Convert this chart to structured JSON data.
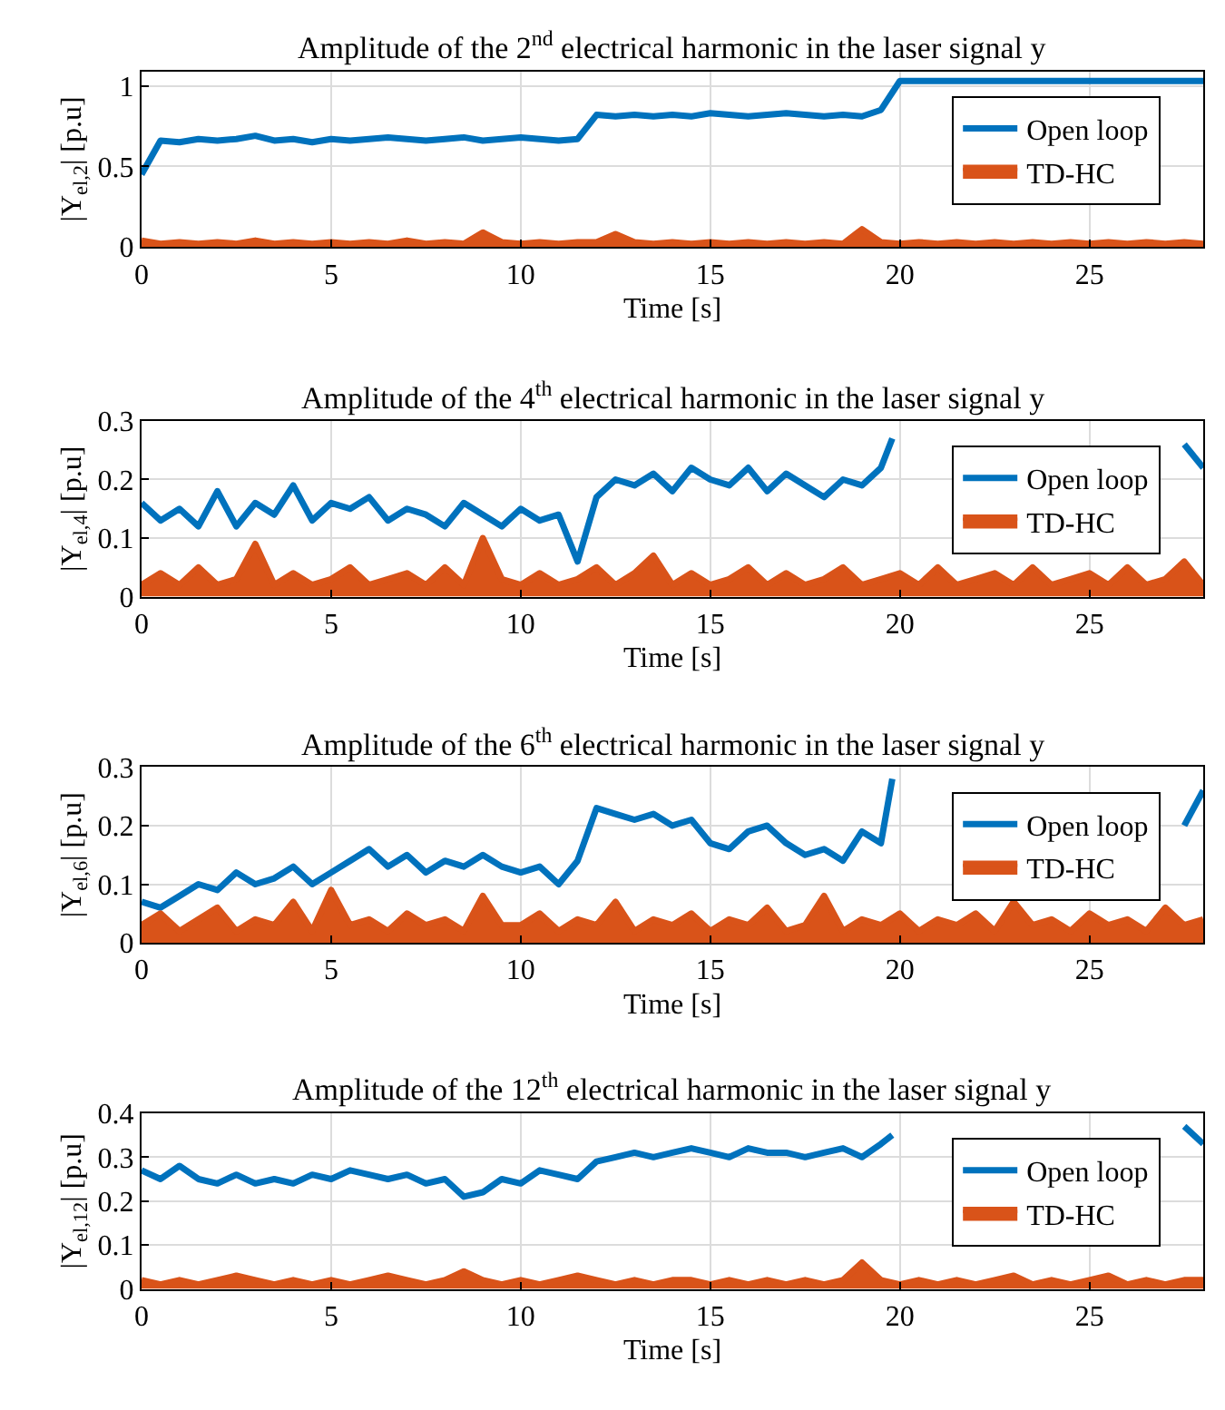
{
  "chart_data": [
    {
      "type": "line",
      "title": "Amplitude of the 2$^{nd}$ electrical harmonic in the laser signal y",
      "xlabel": "Time [s]",
      "ylabel": "|Y$_{el,2}$| [p.u]",
      "xlim": [
        0,
        28
      ],
      "xticks": [
        0,
        5,
        10,
        15,
        20,
        25
      ],
      "ylim": [
        0,
        1.09
      ],
      "yticks": [
        0,
        0.5,
        1
      ],
      "grid": true,
      "legend": "top right",
      "x": [
        0,
        0.5,
        1,
        1.5,
        2,
        2.5,
        3,
        3.5,
        4,
        4.5,
        5,
        5.5,
        6,
        6.5,
        7,
        7.5,
        8,
        8.5,
        9,
        9.5,
        10,
        10.5,
        11,
        11.5,
        12,
        12.5,
        13,
        13.5,
        14,
        14.5,
        15,
        15.5,
        16,
        16.5,
        17,
        17.5,
        18,
        18.5,
        19,
        19.5,
        20,
        20.5,
        21,
        21.5,
        22,
        22.5,
        23,
        23.5,
        24,
        24.5,
        25,
        25.5,
        26,
        26.5,
        27,
        27.5,
        28
      ],
      "series": [
        {
          "name": "Open loop",
          "color": "#0072bd",
          "values": [
            0.45,
            0.66,
            0.65,
            0.67,
            0.66,
            0.67,
            0.69,
            0.66,
            0.67,
            0.65,
            0.67,
            0.66,
            0.67,
            0.68,
            0.67,
            0.66,
            0.67,
            0.68,
            0.66,
            0.67,
            0.68,
            0.67,
            0.66,
            0.67,
            0.82,
            0.81,
            0.82,
            0.81,
            0.82,
            0.81,
            0.83,
            0.82,
            0.81,
            0.82,
            0.83,
            0.82,
            0.81,
            0.82,
            0.81,
            0.85,
            1.03,
            1.03,
            1.03,
            1.03,
            1.03,
            1.03,
            1.03,
            1.03,
            1.03,
            1.03,
            1.03,
            1.03,
            1.03,
            1.03,
            1.03,
            1.03,
            1.03
          ]
        },
        {
          "name": "TD-HC",
          "type": "area",
          "color": "#d95319",
          "values": [
            0.04,
            0.02,
            0.03,
            0.02,
            0.03,
            0.02,
            0.04,
            0.02,
            0.03,
            0.02,
            0.03,
            0.02,
            0.03,
            0.02,
            0.04,
            0.02,
            0.03,
            0.02,
            0.09,
            0.03,
            0.02,
            0.03,
            0.02,
            0.03,
            0.03,
            0.08,
            0.03,
            0.02,
            0.03,
            0.02,
            0.03,
            0.02,
            0.03,
            0.02,
            0.03,
            0.02,
            0.03,
            0.02,
            0.11,
            0.03,
            0.02,
            0.03,
            0.02,
            0.03,
            0.02,
            0.03,
            0.02,
            0.03,
            0.02,
            0.03,
            0.02,
            0.03,
            0.02,
            0.03,
            0.02,
            0.03,
            0.02
          ]
        }
      ]
    },
    {
      "type": "line",
      "title": "Amplitude of the 4$^{th}$ electrical harmonic in the laser signal y",
      "xlabel": "Time [s]",
      "ylabel": "|Y$_{el,4}$| [p.u]",
      "xlim": [
        0,
        28
      ],
      "xticks": [
        0,
        5,
        10,
        15,
        20,
        25
      ],
      "ylim": [
        0,
        0.3
      ],
      "yticks": [
        0,
        0.1,
        0.2,
        0.3
      ],
      "grid": true,
      "legend": "top right",
      "x": [
        0,
        0.5,
        1,
        1.5,
        2,
        2.5,
        3,
        3.5,
        4,
        4.5,
        5,
        5.5,
        6,
        6.5,
        7,
        7.5,
        8,
        8.5,
        9,
        9.5,
        10,
        10.5,
        11,
        11.5,
        12,
        12.5,
        13,
        13.5,
        14,
        14.5,
        15,
        15.5,
        16,
        16.5,
        17,
        17.5,
        18,
        18.5,
        19,
        19.5,
        20,
        20.5,
        21,
        21.5,
        22,
        22.5,
        23,
        23.5,
        24,
        24.5,
        25,
        25.5,
        26,
        26.5,
        27,
        27.5,
        28
      ],
      "series": [
        {
          "name": "Open loop",
          "color": "#0072bd",
          "x": [
            0,
            0.5,
            1,
            1.5,
            2,
            2.5,
            3,
            3.5,
            4,
            4.5,
            5,
            5.5,
            6,
            6.5,
            7,
            7.5,
            8,
            8.5,
            9,
            9.5,
            10,
            10.5,
            11,
            11.5,
            12,
            12.5,
            13,
            13.5,
            14,
            14.5,
            15,
            15.5,
            16,
            16.5,
            17,
            17.5,
            18,
            18.5,
            19,
            19.5,
            19.8,
            20,
            27.5,
            28
          ],
          "values": [
            0.16,
            0.13,
            0.15,
            0.12,
            0.18,
            0.12,
            0.16,
            0.14,
            0.19,
            0.13,
            0.16,
            0.15,
            0.17,
            0.13,
            0.15,
            0.14,
            0.12,
            0.16,
            0.14,
            0.12,
            0.15,
            0.13,
            0.14,
            0.06,
            0.17,
            0.2,
            0.19,
            0.21,
            0.18,
            0.22,
            0.2,
            0.19,
            0.22,
            0.18,
            0.21,
            0.19,
            0.17,
            0.2,
            0.19,
            0.22,
            0.27,
            null,
            0.26,
            0.22
          ]
        },
        {
          "name": "TD-HC",
          "type": "area",
          "color": "#d95319",
          "values": [
            0.02,
            0.04,
            0.02,
            0.05,
            0.02,
            0.03,
            0.09,
            0.02,
            0.04,
            0.02,
            0.03,
            0.05,
            0.02,
            0.03,
            0.04,
            0.02,
            0.05,
            0.02,
            0.1,
            0.03,
            0.02,
            0.04,
            0.02,
            0.03,
            0.05,
            0.02,
            0.04,
            0.07,
            0.02,
            0.04,
            0.02,
            0.03,
            0.05,
            0.02,
            0.04,
            0.02,
            0.03,
            0.05,
            0.02,
            0.03,
            0.04,
            0.02,
            0.05,
            0.02,
            0.03,
            0.04,
            0.02,
            0.05,
            0.02,
            0.03,
            0.04,
            0.02,
            0.05,
            0.02,
            0.03,
            0.06,
            0.02
          ]
        }
      ]
    },
    {
      "type": "line",
      "title": "Amplitude of the 6$^{th}$ electrical harmonic in the laser signal y",
      "xlabel": "Time [s]",
      "ylabel": "|Y$_{el,6}$| [p.u]",
      "xlim": [
        0,
        28
      ],
      "xticks": [
        0,
        5,
        10,
        15,
        20,
        25
      ],
      "ylim": [
        0,
        0.3
      ],
      "yticks": [
        0,
        0.1,
        0.2,
        0.3
      ],
      "grid": true,
      "legend": "top right",
      "x": [
        0,
        0.5,
        1,
        1.5,
        2,
        2.5,
        3,
        3.5,
        4,
        4.5,
        5,
        5.5,
        6,
        6.5,
        7,
        7.5,
        8,
        8.5,
        9,
        9.5,
        10,
        10.5,
        11,
        11.5,
        12,
        12.5,
        13,
        13.5,
        14,
        14.5,
        15,
        15.5,
        16,
        16.5,
        17,
        17.5,
        18,
        18.5,
        19,
        19.5,
        20,
        20.5,
        21,
        21.5,
        22,
        22.5,
        23,
        23.5,
        24,
        24.5,
        25,
        25.5,
        26,
        26.5,
        27,
        27.5,
        28
      ],
      "series": [
        {
          "name": "Open loop",
          "color": "#0072bd",
          "x": [
            0,
            0.5,
            1,
            1.5,
            2,
            2.5,
            3,
            3.5,
            4,
            4.5,
            5,
            5.5,
            6,
            6.5,
            7,
            7.5,
            8,
            8.5,
            9,
            9.5,
            10,
            10.5,
            11,
            11.5,
            12,
            12.5,
            13,
            13.5,
            14,
            14.5,
            15,
            15.5,
            16,
            16.5,
            17,
            17.5,
            18,
            18.5,
            19,
            19.5,
            19.8,
            20,
            27.5,
            28
          ],
          "values": [
            0.07,
            0.06,
            0.08,
            0.1,
            0.09,
            0.12,
            0.1,
            0.11,
            0.13,
            0.1,
            0.12,
            0.14,
            0.16,
            0.13,
            0.15,
            0.12,
            0.14,
            0.13,
            0.15,
            0.13,
            0.12,
            0.13,
            0.1,
            0.14,
            0.23,
            0.22,
            0.21,
            0.22,
            0.2,
            0.21,
            0.17,
            0.16,
            0.19,
            0.2,
            0.17,
            0.15,
            0.16,
            0.14,
            0.19,
            0.17,
            0.28,
            null,
            0.2,
            0.26
          ]
        },
        {
          "name": "TD-HC",
          "type": "area",
          "color": "#d95319",
          "values": [
            0.03,
            0.05,
            0.02,
            0.04,
            0.06,
            0.02,
            0.04,
            0.03,
            0.07,
            0.02,
            0.09,
            0.03,
            0.04,
            0.02,
            0.05,
            0.03,
            0.04,
            0.02,
            0.08,
            0.03,
            0.03,
            0.05,
            0.02,
            0.04,
            0.03,
            0.07,
            0.02,
            0.04,
            0.03,
            0.05,
            0.02,
            0.04,
            0.03,
            0.06,
            0.02,
            0.03,
            0.08,
            0.02,
            0.04,
            0.03,
            0.05,
            0.02,
            0.04,
            0.03,
            0.05,
            0.02,
            0.07,
            0.03,
            0.04,
            0.02,
            0.05,
            0.03,
            0.04,
            0.02,
            0.06,
            0.03,
            0.04
          ]
        }
      ]
    },
    {
      "type": "line",
      "title": "Amplitude of the 12$^{th}$ electrical harmonic in the laser signal y",
      "xlabel": "Time [s]",
      "ylabel": "|Y$_{el,12}$| [p.u]",
      "xlim": [
        0,
        28
      ],
      "xticks": [
        0,
        5,
        10,
        15,
        20,
        25
      ],
      "ylim": [
        0,
        0.4
      ],
      "yticks": [
        0,
        0.1,
        0.2,
        0.3,
        0.4
      ],
      "grid": true,
      "legend": "top right",
      "x": [
        0,
        0.5,
        1,
        1.5,
        2,
        2.5,
        3,
        3.5,
        4,
        4.5,
        5,
        5.5,
        6,
        6.5,
        7,
        7.5,
        8,
        8.5,
        9,
        9.5,
        10,
        10.5,
        11,
        11.5,
        12,
        12.5,
        13,
        13.5,
        14,
        14.5,
        15,
        15.5,
        16,
        16.5,
        17,
        17.5,
        18,
        18.5,
        19,
        19.5,
        20,
        20.5,
        21,
        21.5,
        22,
        22.5,
        23,
        23.5,
        24,
        24.5,
        25,
        25.5,
        26,
        26.5,
        27,
        27.5,
        28
      ],
      "series": [
        {
          "name": "Open loop",
          "color": "#0072bd",
          "x": [
            0,
            0.5,
            1,
            1.5,
            2,
            2.5,
            3,
            3.5,
            4,
            4.5,
            5,
            5.5,
            6,
            6.5,
            7,
            7.5,
            8,
            8.5,
            9,
            9.5,
            10,
            10.5,
            11,
            11.5,
            12,
            12.5,
            13,
            13.5,
            14,
            14.5,
            15,
            15.5,
            16,
            16.5,
            17,
            17.5,
            18,
            18.5,
            19,
            19.5,
            19.8,
            20,
            27.5,
            28
          ],
          "values": [
            0.27,
            0.25,
            0.28,
            0.25,
            0.24,
            0.26,
            0.24,
            0.25,
            0.24,
            0.26,
            0.25,
            0.27,
            0.26,
            0.25,
            0.26,
            0.24,
            0.25,
            0.21,
            0.22,
            0.25,
            0.24,
            0.27,
            0.26,
            0.25,
            0.29,
            0.3,
            0.31,
            0.3,
            0.31,
            0.32,
            0.31,
            0.3,
            0.32,
            0.31,
            0.31,
            0.3,
            0.31,
            0.32,
            0.3,
            0.33,
            0.35,
            null,
            0.37,
            0.33
          ]
        },
        {
          "name": "TD-HC",
          "type": "area",
          "color": "#d95319",
          "values": [
            0.02,
            0.01,
            0.02,
            0.01,
            0.02,
            0.03,
            0.02,
            0.01,
            0.02,
            0.01,
            0.02,
            0.01,
            0.02,
            0.03,
            0.02,
            0.01,
            0.02,
            0.04,
            0.02,
            0.01,
            0.02,
            0.01,
            0.02,
            0.03,
            0.02,
            0.01,
            0.02,
            0.01,
            0.02,
            0.02,
            0.01,
            0.02,
            0.01,
            0.02,
            0.01,
            0.02,
            0.01,
            0.02,
            0.06,
            0.02,
            0.01,
            0.02,
            0.01,
            0.02,
            0.01,
            0.02,
            0.03,
            0.01,
            0.02,
            0.01,
            0.02,
            0.03,
            0.01,
            0.02,
            0.01,
            0.02,
            0.02
          ]
        }
      ]
    }
  ]
}
